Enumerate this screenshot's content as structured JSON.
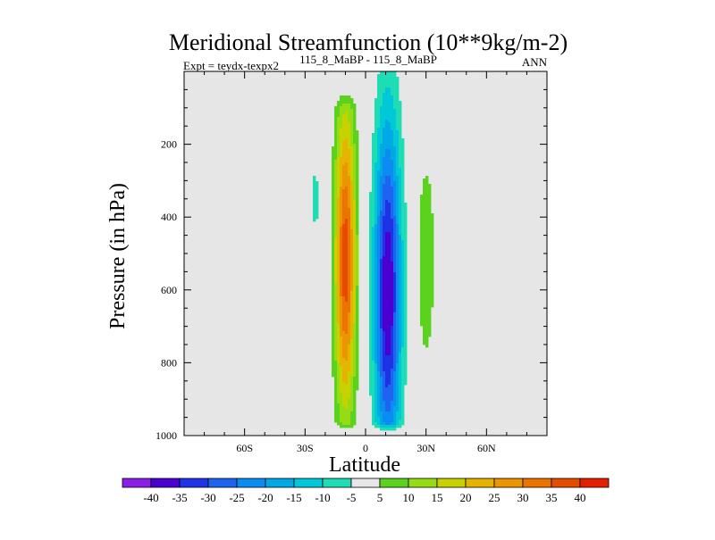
{
  "chart_data": {
    "type": "contour",
    "title": "Meridional Streamfunction (10**9kg/m-2)",
    "left_label": "Expt = teydx-texpx2",
    "center_label": "115_8_MaBP - 115_8_MaBP",
    "right_label": "ANN",
    "xlabel": "Latitude",
    "ylabel": "Pressure (in hPa)",
    "xlim": [
      -90,
      90
    ],
    "ylim": [
      1000,
      0
    ],
    "x_ticks": [
      {
        "value": -60,
        "label": "60S"
      },
      {
        "value": -30,
        "label": "30S"
      },
      {
        "value": 0,
        "label": "0"
      },
      {
        "value": 30,
        "label": "30N"
      },
      {
        "value": 60,
        "label": "60N"
      }
    ],
    "y_ticks": [
      {
        "value": 200,
        "label": "200"
      },
      {
        "value": 400,
        "label": "400"
      },
      {
        "value": 600,
        "label": "600"
      },
      {
        "value": 800,
        "label": "800"
      },
      {
        "value": 1000,
        "label": "1000"
      }
    ],
    "levels": [
      -40,
      -35,
      -30,
      -25,
      -20,
      -15,
      -10,
      -5,
      5,
      10,
      15,
      20,
      25,
      30,
      35,
      40
    ],
    "level_labels": [
      "-40",
      "-35",
      "-30",
      "-25",
      "-20",
      "-15",
      "-10",
      "-5",
      "5",
      "10",
      "15",
      "20",
      "25",
      "30",
      "35",
      "40"
    ],
    "colors": [
      "#8a1ee6",
      "#4b00d2",
      "#1e32e6",
      "#1e64f0",
      "#0a8cf0",
      "#00a8e6",
      "#00c8d8",
      "#1edcb4",
      "#e6e6e6",
      "#5ad21e",
      "#96dc14",
      "#c8d200",
      "#e6b400",
      "#eb9600",
      "#eb7300",
      "#e64b00",
      "#e61e00"
    ],
    "background_color": "#e6e6e6",
    "features": [
      {
        "name": "southern-hadley-cell",
        "sign": "positive",
        "lat_range": [
          -18,
          -2
        ],
        "pressure_range": [
          50,
          985
        ],
        "max_value": 35,
        "core_lat": -10,
        "core_pressure": 550
      },
      {
        "name": "northern-hadley-cell",
        "sign": "negative",
        "lat_range": [
          2,
          22
        ],
        "pressure_range": [
          0,
          985
        ],
        "min_value": -35,
        "core_lat": 11,
        "core_pressure": 650
      },
      {
        "name": "southern-ferrel-cell",
        "sign": "negative",
        "lat_range": [
          -27,
          -23
        ],
        "pressure_range": [
          265,
          435
        ],
        "min_value": -10
      },
      {
        "name": "northern-ferrel-cell",
        "sign": "positive",
        "lat_range": [
          25,
          37
        ],
        "pressure_range": [
          215,
          845
        ],
        "max_value": 10
      }
    ]
  }
}
